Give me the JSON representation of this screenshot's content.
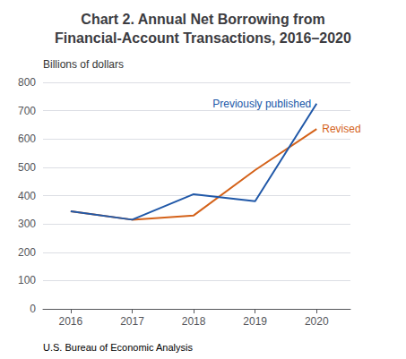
{
  "chart_data": {
    "type": "line",
    "title": "Chart 2. Annual Net Borrowing from\nFinancial-Account Transactions, 2016–2020",
    "ylabel": "Billions of dollars",
    "annotations": [
      "U.S. Bureau of Economic Analysis"
    ],
    "x": [
      2016,
      2017,
      2018,
      2019,
      2020
    ],
    "series": [
      {
        "name": "Previously published",
        "color": "#2058A8",
        "values": [
          345,
          315,
          405,
          380,
          725
        ]
      },
      {
        "name": "Revised",
        "color": "#D4621A",
        "values": [
          345,
          315,
          330,
          490,
          635
        ]
      }
    ],
    "xlim": [
      2015.55,
      2020.55
    ],
    "xticks": [
      2016,
      2017,
      2018,
      2019,
      2020
    ],
    "ylim": [
      0,
      800
    ],
    "yticks": [
      0,
      100,
      200,
      300,
      400,
      500,
      600,
      700,
      800
    ],
    "grid": true
  }
}
